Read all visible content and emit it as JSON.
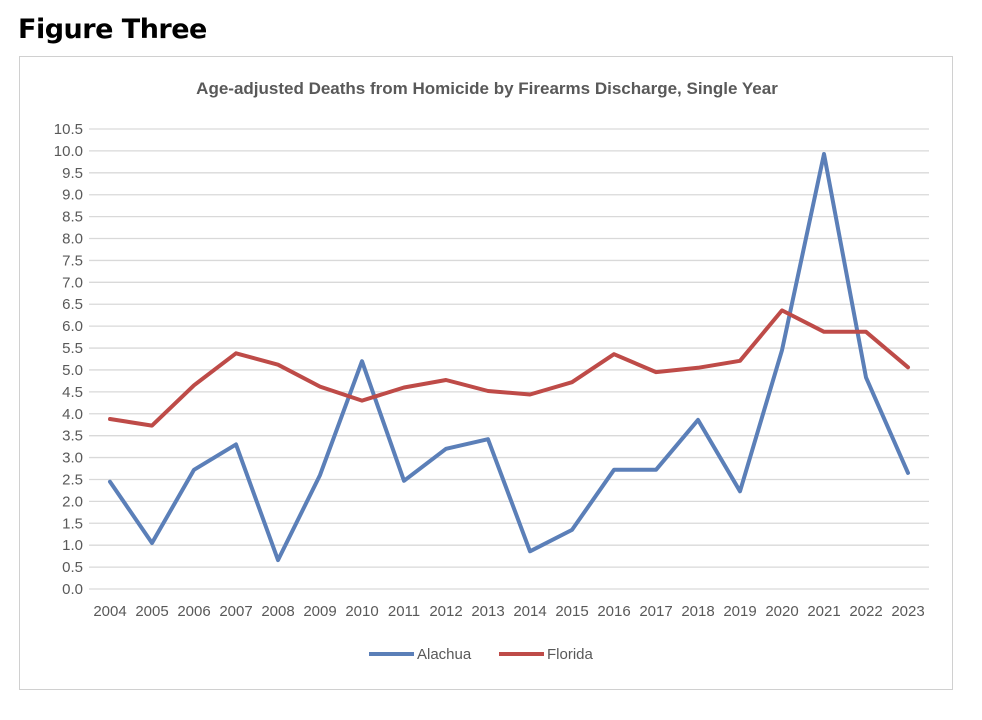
{
  "figure_heading": "Figure Three",
  "chart_data": {
    "type": "line",
    "title": "Age-adjusted Deaths from Homicide by Firearms Discharge, Single Year",
    "xlabel": "",
    "ylabel": "",
    "categories": [
      "2004",
      "2005",
      "2006",
      "2007",
      "2008",
      "2009",
      "2010",
      "2011",
      "2012",
      "2013",
      "2014",
      "2015",
      "2016",
      "2017",
      "2018",
      "2019",
      "2020",
      "2021",
      "2022",
      "2023"
    ],
    "ylim": [
      0,
      10.5
    ],
    "yticks": [
      "0.0",
      "0.5",
      "1.0",
      "1.5",
      "2.0",
      "2.5",
      "3.0",
      "3.5",
      "4.0",
      "4.5",
      "5.0",
      "5.5",
      "6.0",
      "6.5",
      "7.0",
      "7.5",
      "8.0",
      "8.5",
      "9.0",
      "9.5",
      "10.0",
      "10.5"
    ],
    "grid": true,
    "legend_position": "bottom",
    "series": [
      {
        "name": "Alachua",
        "color": "#5b7fb8",
        "values": [
          2.45,
          1.05,
          2.72,
          3.3,
          0.66,
          2.6,
          5.2,
          2.47,
          3.2,
          3.42,
          0.86,
          1.35,
          2.72,
          2.72,
          3.86,
          2.23,
          5.45,
          9.93,
          4.83,
          2.65
        ]
      },
      {
        "name": "Florida",
        "color": "#be4b48",
        "values": [
          3.88,
          3.73,
          4.65,
          5.38,
          5.12,
          4.62,
          4.3,
          4.6,
          4.77,
          4.52,
          4.44,
          4.72,
          5.36,
          4.95,
          5.05,
          5.21,
          6.36,
          5.87,
          5.87,
          5.06
        ]
      }
    ]
  }
}
